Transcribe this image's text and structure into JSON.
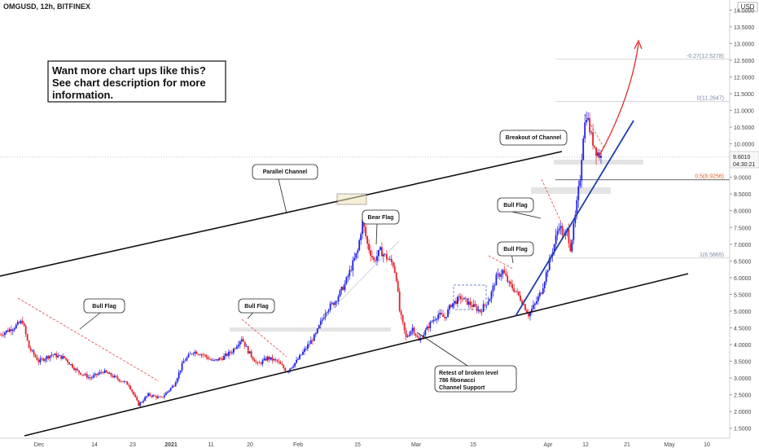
{
  "header": {
    "symbol_line": "OMGUSD, 12h, BITFINEX",
    "currency": "USD"
  },
  "promo": {
    "lines": [
      "Want more chart ups like this?",
      "See chart description for more",
      "information."
    ]
  },
  "price_tag": {
    "value": "9.6010",
    "countdown": "04:30:21"
  },
  "colors": {
    "up": "#1e1ee6",
    "down": "#e0202a",
    "channel": "#111111",
    "trendline": "#1f3fa8",
    "projection": "#e02020",
    "flag_dash": "#e04040",
    "fib_text": "#7a8aa8",
    "fib_orange": "#e06020",
    "zone": "#d9d9d9"
  },
  "chart_data": {
    "type": "candlestick",
    "title": "OMGUSD, 12h, BITFINEX",
    "y_axis": {
      "side": "right",
      "unit": "USD",
      "min": 1.2,
      "max": 14.3,
      "ticks": [
        "1.5000",
        "2.0000",
        "2.5000",
        "3.0000",
        "3.5000",
        "4.0000",
        "4.5000",
        "5.0000",
        "5.5000",
        "6.0000",
        "6.5000",
        "7.0000",
        "7.5000",
        "8.0000",
        "8.5000",
        "9.0000",
        "9.5000",
        "10.0000",
        "10.5000",
        "11.0000",
        "11.5000",
        "12.0000",
        "12.5000",
        "13.0000",
        "13.5000",
        "14.0000"
      ]
    },
    "x_axis": {
      "ticks": [
        "Dec",
        "14",
        "23",
        "2021",
        "11",
        "20",
        "Feb",
        "15",
        "Mar",
        "15",
        "Apr",
        "12",
        "21",
        "May",
        "10"
      ]
    },
    "grid": false,
    "legend": "none",
    "price_path": [
      {
        "t": 0,
        "p": 4.3
      },
      {
        "t": 8,
        "p": 4.5
      },
      {
        "t": 14,
        "p": 4.7
      },
      {
        "t": 18,
        "p": 3.9
      },
      {
        "t": 24,
        "p": 3.5
      },
      {
        "t": 32,
        "p": 3.7
      },
      {
        "t": 40,
        "p": 3.6
      },
      {
        "t": 48,
        "p": 3.2
      },
      {
        "t": 56,
        "p": 3.0
      },
      {
        "t": 64,
        "p": 3.2
      },
      {
        "t": 72,
        "p": 3.0
      },
      {
        "t": 80,
        "p": 2.8
      },
      {
        "t": 86,
        "p": 2.2
      },
      {
        "t": 92,
        "p": 2.5
      },
      {
        "t": 100,
        "p": 2.4
      },
      {
        "t": 108,
        "p": 2.8
      },
      {
        "t": 114,
        "p": 3.5
      },
      {
        "t": 120,
        "p": 3.8
      },
      {
        "t": 126,
        "p": 3.7
      },
      {
        "t": 132,
        "p": 3.5
      },
      {
        "t": 138,
        "p": 3.6
      },
      {
        "t": 144,
        "p": 3.8
      },
      {
        "t": 150,
        "p": 4.2
      },
      {
        "t": 154,
        "p": 3.8
      },
      {
        "t": 160,
        "p": 3.4
      },
      {
        "t": 166,
        "p": 3.6
      },
      {
        "t": 172,
        "p": 3.5
      },
      {
        "t": 178,
        "p": 3.2
      },
      {
        "t": 184,
        "p": 3.5
      },
      {
        "t": 190,
        "p": 3.9
      },
      {
        "t": 196,
        "p": 4.3
      },
      {
        "t": 202,
        "p": 5.0
      },
      {
        "t": 208,
        "p": 5.3
      },
      {
        "t": 214,
        "p": 5.8
      },
      {
        "t": 218,
        "p": 6.3
      },
      {
        "t": 222,
        "p": 6.8
      },
      {
        "t": 225,
        "p": 7.7
      },
      {
        "t": 228,
        "p": 7.0
      },
      {
        "t": 232,
        "p": 6.5
      },
      {
        "t": 236,
        "p": 6.8
      },
      {
        "t": 240,
        "p": 6.6
      },
      {
        "t": 244,
        "p": 6.4
      },
      {
        "t": 246,
        "p": 6.0
      },
      {
        "t": 248,
        "p": 5.0
      },
      {
        "t": 252,
        "p": 4.2
      },
      {
        "t": 256,
        "p": 4.5
      },
      {
        "t": 260,
        "p": 4.1
      },
      {
        "t": 264,
        "p": 4.4
      },
      {
        "t": 268,
        "p": 4.7
      },
      {
        "t": 272,
        "p": 4.9
      },
      {
        "t": 276,
        "p": 4.8
      },
      {
        "t": 280,
        "p": 5.2
      },
      {
        "t": 286,
        "p": 5.4
      },
      {
        "t": 292,
        "p": 5.2
      },
      {
        "t": 298,
        "p": 5.0
      },
      {
        "t": 304,
        "p": 5.4
      },
      {
        "t": 308,
        "p": 6.0
      },
      {
        "t": 312,
        "p": 6.2
      },
      {
        "t": 316,
        "p": 5.8
      },
      {
        "t": 320,
        "p": 5.6
      },
      {
        "t": 324,
        "p": 5.3
      },
      {
        "t": 328,
        "p": 4.9
      },
      {
        "t": 332,
        "p": 5.2
      },
      {
        "t": 336,
        "p": 5.6
      },
      {
        "t": 340,
        "p": 6.3
      },
      {
        "t": 344,
        "p": 7.0
      },
      {
        "t": 347,
        "p": 7.6
      },
      {
        "t": 350,
        "p": 7.2
      },
      {
        "t": 352,
        "p": 7.4
      },
      {
        "t": 354,
        "p": 6.9
      },
      {
        "t": 357,
        "p": 7.8
      },
      {
        "t": 360,
        "p": 9.0
      },
      {
        "t": 362,
        "p": 10.3
      },
      {
        "t": 364,
        "p": 10.9
      },
      {
        "t": 367,
        "p": 10.2
      },
      {
        "t": 370,
        "p": 9.8
      },
      {
        "t": 373,
        "p": 9.6
      }
    ],
    "fibonacci": [
      {
        "label": "-0.27(12.5278)",
        "value": 12.5278
      },
      {
        "label": "0(11.2647)",
        "value": 11.2647
      },
      {
        "label": "0.5(8.9256)",
        "value": 8.9256
      },
      {
        "label": "1(6.5865)",
        "value": 6.5865
      }
    ],
    "current_price": 9.601
  },
  "annotations": [
    {
      "key": "parallel",
      "text": [
        "Parallel Channel"
      ]
    },
    {
      "key": "bullflag1",
      "text": [
        "Bull Flag"
      ]
    },
    {
      "key": "bullflag2",
      "text": [
        "Bull Flag"
      ]
    },
    {
      "key": "bearflag",
      "text": [
        "Bear Flag"
      ]
    },
    {
      "key": "bullflag3",
      "text": [
        "Bull Flag"
      ]
    },
    {
      "key": "bullflag4",
      "text": [
        "Bull Flag"
      ]
    },
    {
      "key": "breakout",
      "text": [
        "Breakout of Channel"
      ]
    },
    {
      "key": "retest",
      "text": [
        "Retest of broken level",
        "786 fibonacci",
        "Channel Support"
      ]
    }
  ]
}
